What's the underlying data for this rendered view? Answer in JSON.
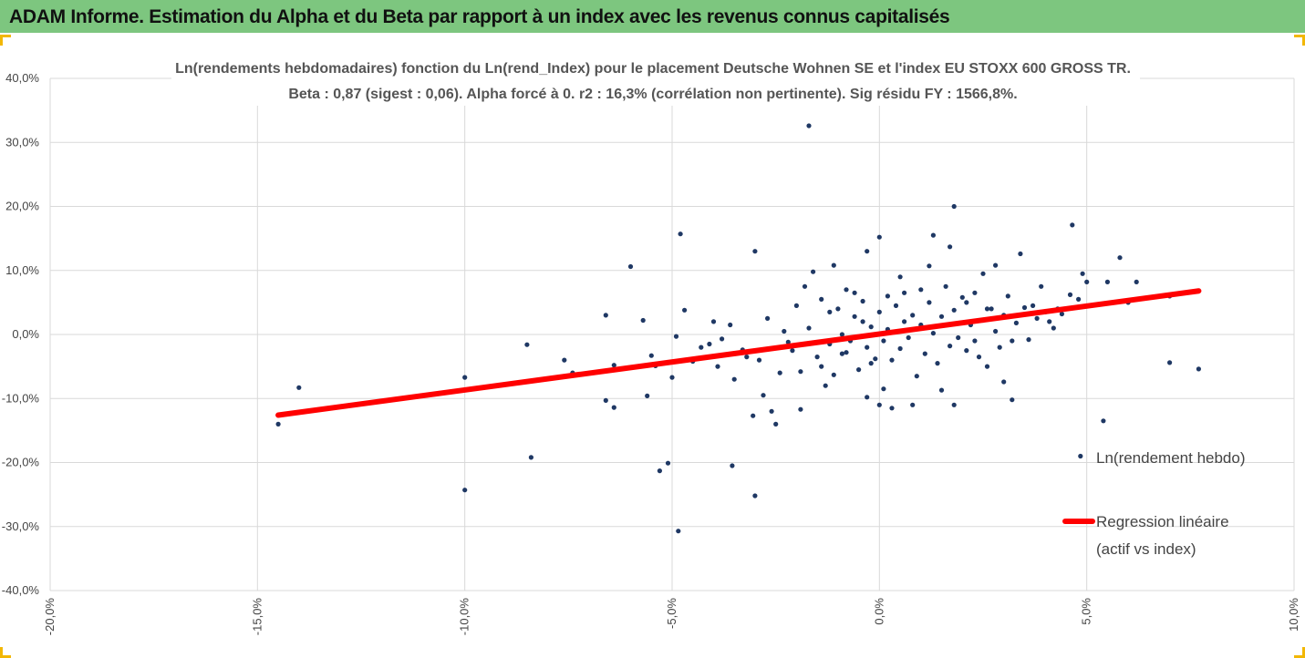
{
  "banner": {
    "title": "ADAM Informe. Estimation du Alpha et du Beta par rapport à un index avec les revenus connus capitalisés"
  },
  "colors": {
    "banner": "#7dc67f",
    "accent_corner": "#f2b705",
    "points": "#1f3864",
    "regression": "#ff0000",
    "grid": "#d9d9d9"
  },
  "chart_data": {
    "type": "scatter",
    "title_line1": "Ln(rendements hebdomadaires) fonction du Ln(rend_Index) pour le placement Deutsche Wohnen SE et l'index EU STOXX 600 GROSS TR.",
    "title_line2": "Beta : 0,87 (sigest : 0,06). Alpha forcé à 0. r2 : 16,3% (corrélation non pertinente). Sig résidu FY : 1566,8%.",
    "xlim": [
      -20,
      10
    ],
    "ylim": [
      -40,
      40
    ],
    "x_ticks": [
      -20,
      -15,
      -10,
      -5,
      0,
      5,
      10
    ],
    "y_ticks": [
      -40,
      -30,
      -20,
      -10,
      0,
      10,
      20,
      30,
      40
    ],
    "x_tick_labels": [
      "-20,0%",
      "-15,0%",
      "-10,0%",
      "-5,0%",
      "0,0%",
      "5,0%",
      "10,0%"
    ],
    "y_tick_labels": [
      "-40,0%",
      "-30,0%",
      "-20,0%",
      "-10,0%",
      "0,0%",
      "10,0%",
      "20,0%",
      "30,0%",
      "40,0%"
    ],
    "grid": true,
    "legend_position": "right",
    "series": [
      {
        "name": "Ln(rendement hebdo)",
        "kind": "scatter",
        "points": [
          [
            -14.5,
            -14.0
          ],
          [
            -14.0,
            -8.3
          ],
          [
            -10.0,
            -6.7
          ],
          [
            -10.0,
            -24.3
          ],
          [
            -8.5,
            -1.6
          ],
          [
            -8.4,
            -19.2
          ],
          [
            -7.6,
            -4.0
          ],
          [
            -7.4,
            -6.0
          ],
          [
            -6.6,
            3.0
          ],
          [
            -6.6,
            -10.3
          ],
          [
            -6.4,
            -11.4
          ],
          [
            -6.4,
            -4.8
          ],
          [
            -6.0,
            10.6
          ],
          [
            -5.7,
            2.2
          ],
          [
            -5.6,
            -9.6
          ],
          [
            -5.5,
            -3.3
          ],
          [
            -5.4,
            -4.9
          ],
          [
            -5.3,
            -21.3
          ],
          [
            -5.1,
            -20.1
          ],
          [
            -5.0,
            -6.7
          ],
          [
            -4.9,
            -0.3
          ],
          [
            -4.85,
            -30.7
          ],
          [
            -4.8,
            15.7
          ],
          [
            -4.7,
            3.8
          ],
          [
            -4.5,
            -4.2
          ],
          [
            -4.3,
            -2.0
          ],
          [
            -4.0,
            2.0
          ],
          [
            -3.9,
            -5.0
          ],
          [
            -3.6,
            1.5
          ],
          [
            -3.55,
            -20.5
          ],
          [
            -3.5,
            -7.0
          ],
          [
            -3.2,
            -3.5
          ],
          [
            -3.0,
            13.0
          ],
          [
            -3.05,
            -12.7
          ],
          [
            -3.0,
            -25.2
          ],
          [
            -2.8,
            -9.5
          ],
          [
            -2.6,
            -12.0
          ],
          [
            -2.5,
            -14.0
          ],
          [
            -2.3,
            0.5
          ],
          [
            -2.1,
            -2.5
          ],
          [
            -1.9,
            -11.7
          ],
          [
            -1.8,
            7.5
          ],
          [
            -1.7,
            32.6
          ],
          [
            -1.6,
            9.8
          ],
          [
            -1.4,
            -5.0
          ],
          [
            -1.3,
            -8.0
          ],
          [
            -1.2,
            3.5
          ],
          [
            -1.1,
            10.8
          ],
          [
            -0.9,
            0.0
          ],
          [
            -0.8,
            -2.8
          ],
          [
            -0.6,
            6.5
          ],
          [
            -0.4,
            2.0
          ],
          [
            -0.3,
            13.0
          ],
          [
            -0.3,
            -9.8
          ],
          [
            -0.2,
            -4.5
          ],
          [
            0.0,
            15.2
          ],
          [
            0.0,
            -11.0
          ],
          [
            0.1,
            -8.5
          ],
          [
            0.2,
            6.0
          ],
          [
            0.3,
            -11.5
          ],
          [
            0.5,
            9.0
          ],
          [
            0.6,
            2.0
          ],
          [
            0.8,
            -11.0
          ],
          [
            1.0,
            7.0
          ],
          [
            1.2,
            10.7
          ],
          [
            1.3,
            15.5
          ],
          [
            1.5,
            -8.7
          ],
          [
            1.7,
            13.7
          ],
          [
            1.8,
            20.0
          ],
          [
            1.8,
            -11.0
          ],
          [
            2.1,
            5.0
          ],
          [
            2.3,
            -1.0
          ],
          [
            2.5,
            9.5
          ],
          [
            2.6,
            4.0
          ],
          [
            2.8,
            10.8
          ],
          [
            3.0,
            -7.4
          ],
          [
            3.2,
            -10.2
          ],
          [
            3.4,
            12.6
          ],
          [
            3.7,
            4.5
          ],
          [
            3.9,
            7.5
          ],
          [
            4.1,
            2.0
          ],
          [
            4.3,
            4.0
          ],
          [
            4.6,
            6.2
          ],
          [
            4.65,
            17.1
          ],
          [
            4.8,
            5.5
          ],
          [
            4.9,
            9.5
          ],
          [
            4.85,
            -19.0
          ],
          [
            5.0,
            8.2
          ],
          [
            5.4,
            -13.5
          ],
          [
            5.5,
            8.2
          ],
          [
            5.8,
            12.0
          ],
          [
            6.0,
            5.0
          ],
          [
            6.2,
            8.2
          ],
          [
            7.0,
            6.0
          ],
          [
            7.0,
            -4.4
          ],
          [
            7.7,
            -5.4
          ],
          [
            -4.1,
            -1.5
          ],
          [
            -3.8,
            -0.7
          ],
          [
            -3.3,
            -2.4
          ],
          [
            -2.9,
            -4.0
          ],
          [
            -2.7,
            2.5
          ],
          [
            -2.4,
            -6.0
          ],
          [
            -2.2,
            -1.2
          ],
          [
            -2.0,
            4.5
          ],
          [
            -1.9,
            -5.8
          ],
          [
            -1.7,
            1.0
          ],
          [
            -1.5,
            -3.5
          ],
          [
            -1.4,
            5.5
          ],
          [
            -1.2,
            -1.5
          ],
          [
            -1.1,
            -6.3
          ],
          [
            -1.0,
            4.0
          ],
          [
            -0.9,
            -3.0
          ],
          [
            -0.8,
            7.0
          ],
          [
            -0.7,
            -1.0
          ],
          [
            -0.6,
            2.8
          ],
          [
            -0.5,
            -5.5
          ],
          [
            -0.4,
            5.2
          ],
          [
            -0.3,
            -2.0
          ],
          [
            -0.2,
            1.2
          ],
          [
            -0.1,
            -3.8
          ],
          [
            0.0,
            3.5
          ],
          [
            0.1,
            -1.0
          ],
          [
            0.2,
            0.8
          ],
          [
            0.3,
            -4.0
          ],
          [
            0.4,
            4.5
          ],
          [
            0.5,
            -2.2
          ],
          [
            0.6,
            6.5
          ],
          [
            0.7,
            -0.5
          ],
          [
            0.8,
            3.0
          ],
          [
            0.9,
            -6.5
          ],
          [
            1.0,
            1.5
          ],
          [
            1.1,
            -3.0
          ],
          [
            1.2,
            5.0
          ],
          [
            1.3,
            0.2
          ],
          [
            1.4,
            -4.5
          ],
          [
            1.5,
            2.8
          ],
          [
            1.6,
            7.5
          ],
          [
            1.7,
            -1.8
          ],
          [
            1.8,
            3.8
          ],
          [
            1.9,
            -0.5
          ],
          [
            2.0,
            5.8
          ],
          [
            2.1,
            -2.5
          ],
          [
            2.2,
            1.5
          ],
          [
            2.3,
            6.5
          ],
          [
            2.4,
            -3.5
          ],
          [
            2.5,
            2.2
          ],
          [
            2.6,
            -5.0
          ],
          [
            2.7,
            4.0
          ],
          [
            2.8,
            0.5
          ],
          [
            2.9,
            -2.0
          ],
          [
            3.0,
            3.0
          ],
          [
            3.1,
            6.0
          ],
          [
            3.2,
            -1.0
          ],
          [
            3.3,
            1.8
          ],
          [
            3.5,
            4.2
          ],
          [
            3.6,
            -0.8
          ],
          [
            3.8,
            2.5
          ],
          [
            4.0,
            3.5
          ],
          [
            4.2,
            1.0
          ],
          [
            4.4,
            3.2
          ]
        ]
      },
      {
        "name": "Regression linéaire (actif vs index)",
        "kind": "line",
        "points": [
          [
            -14.5,
            -12.6
          ],
          [
            7.7,
            6.8
          ]
        ]
      }
    ],
    "legend": {
      "entry1": "Ln(rendement hebdo)",
      "entry2_line1": "Regression linéaire",
      "entry2_line2": "(actif vs index)"
    }
  }
}
